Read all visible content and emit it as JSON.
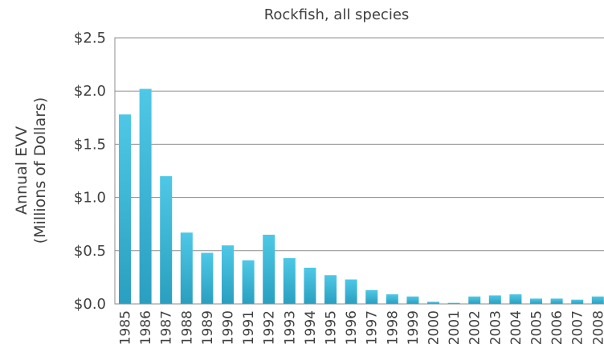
{
  "chart_data": {
    "type": "bar",
    "title": "Rockfish, all species",
    "ylabel_line1": "Annual EVV",
    "ylabel_line2": "(Millions of Dollars)",
    "xlabel": "",
    "ylim": [
      0,
      2.5
    ],
    "yticks": [
      0.0,
      0.5,
      1.0,
      1.5,
      2.0,
      2.5
    ],
    "ytick_labels": [
      "$0.0",
      "$0.5",
      "$1.0",
      "$1.5",
      "$2.0",
      "$2.5"
    ],
    "grid": true,
    "legend": "none",
    "bar_color_top": "#4ec8e6",
    "bar_color_bottom": "#2a9fc0",
    "categories": [
      "1985",
      "1986",
      "1987",
      "1988",
      "1989",
      "1990",
      "1991",
      "1992",
      "1993",
      "1994",
      "1995",
      "1996",
      "1997",
      "1998",
      "1999",
      "2000",
      "2001",
      "2002",
      "2003",
      "2004",
      "2005",
      "2006",
      "2007",
      "2008"
    ],
    "values": [
      1.78,
      2.02,
      1.2,
      0.67,
      0.48,
      0.55,
      0.41,
      0.65,
      0.43,
      0.34,
      0.27,
      0.23,
      0.13,
      0.09,
      0.07,
      0.02,
      0.01,
      0.07,
      0.08,
      0.09,
      0.05,
      0.05,
      0.04,
      0.07
    ]
  }
}
